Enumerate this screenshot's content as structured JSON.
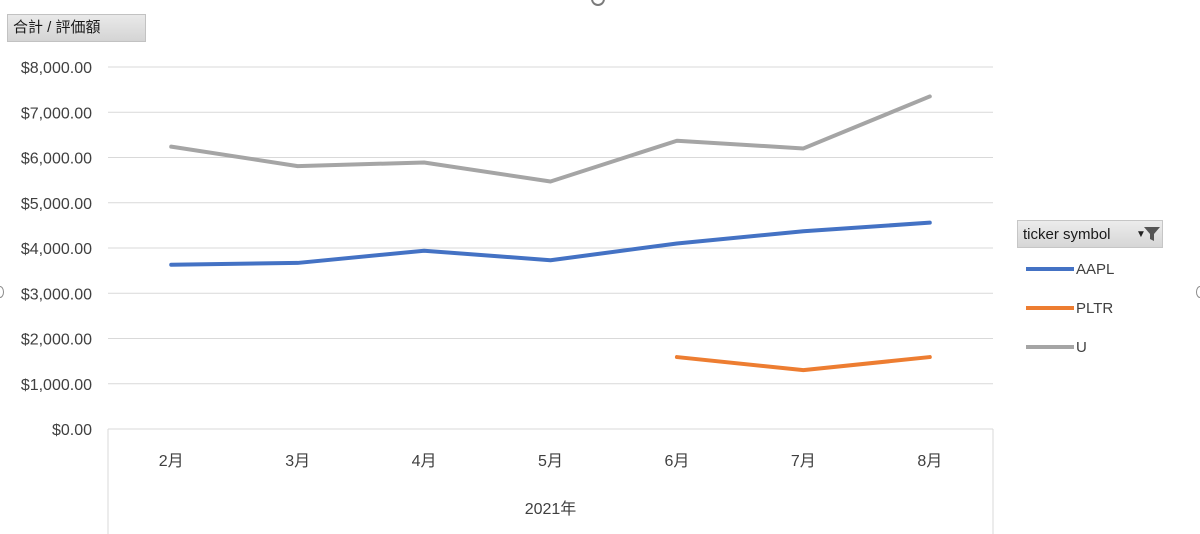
{
  "field_button_label": "合計 / 評価額",
  "legend": {
    "title": "ticker symbol"
  },
  "chart_data": {
    "type": "line",
    "group_label": "2021年",
    "categories": [
      "2月",
      "3月",
      "4月",
      "5月",
      "6月",
      "7月",
      "8月"
    ],
    "y_ticks": [
      "$0.00",
      "$1,000.00",
      "$2,000.00",
      "$3,000.00",
      "$4,000.00",
      "$5,000.00",
      "$6,000.00",
      "$7,000.00",
      "$8,000.00"
    ],
    "ylim": [
      0,
      8000
    ],
    "grid": true,
    "legend_position": "right",
    "series": [
      {
        "name": "AAPL",
        "color": "#4472C4",
        "values": [
          3630,
          3670,
          3940,
          3730,
          4100,
          4370,
          4560
        ]
      },
      {
        "name": "PLTR",
        "color": "#ED7D31",
        "values": [
          null,
          null,
          null,
          null,
          1590,
          1300,
          1590
        ]
      },
      {
        "name": "U",
        "color": "#A5A5A5",
        "values": [
          6240,
          5810,
          5890,
          5470,
          6370,
          6200,
          7350
        ]
      }
    ]
  }
}
